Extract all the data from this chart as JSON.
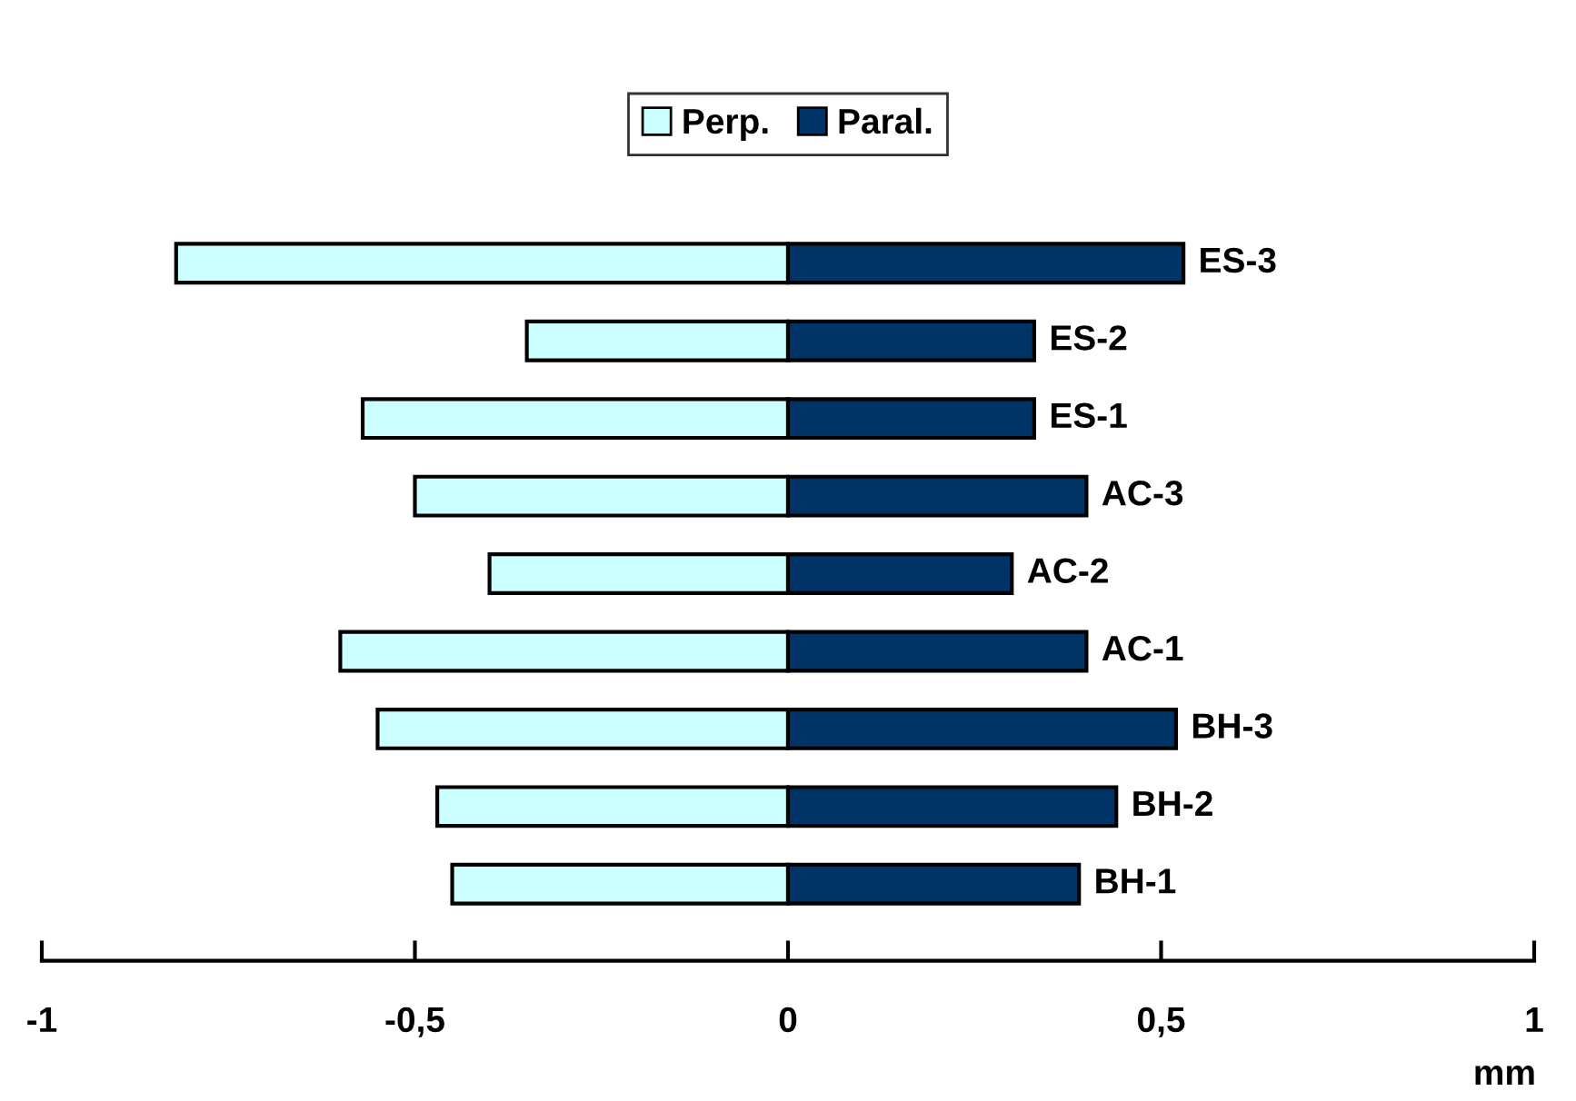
{
  "chart_data": {
    "type": "bar",
    "orientation": "horizontal",
    "xlabel": "mm",
    "categories": [
      "ES-3",
      "ES-2",
      "ES-1",
      "AC-3",
      "AC-2",
      "AC-1",
      "BH-3",
      "BH-2",
      "BH-1"
    ],
    "series": [
      {
        "name": "Perp.",
        "color": "#ccffff",
        "values": [
          -0.82,
          -0.35,
          -0.57,
          -0.5,
          -0.4,
          -0.6,
          -0.55,
          -0.47,
          -0.45
        ]
      },
      {
        "name": "Paral.",
        "color": "#003366",
        "values": [
          0.53,
          0.33,
          0.33,
          0.4,
          0.3,
          0.4,
          0.52,
          0.44,
          0.39
        ]
      }
    ],
    "xlim": [
      -1,
      1
    ],
    "xticks": [
      {
        "value": -1,
        "label": "-1"
      },
      {
        "value": -0.5,
        "label": "-0,5"
      },
      0,
      {
        "value": 0.5,
        "label": "0,5"
      },
      1
    ],
    "stacked": true,
    "grid": false,
    "legend": "top"
  }
}
